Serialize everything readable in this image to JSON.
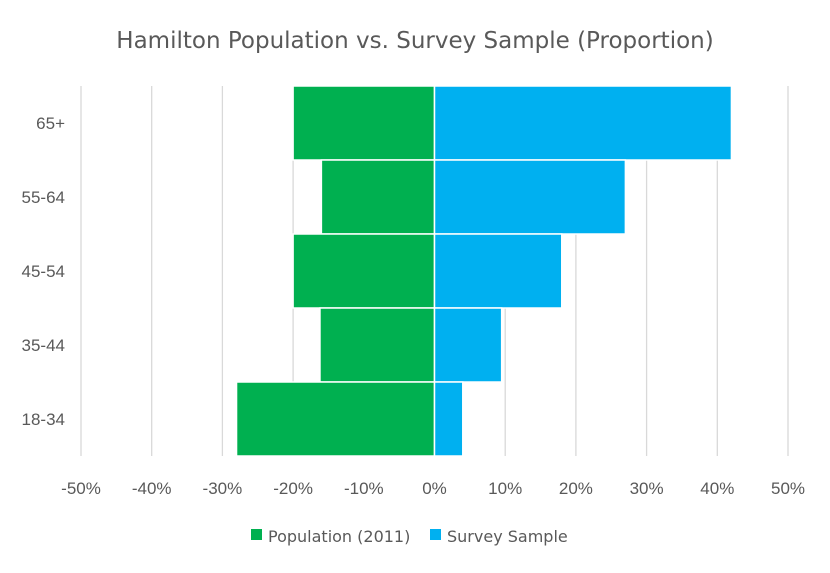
{
  "chart_data": {
    "type": "bar",
    "orientation": "horizontal",
    "stacked": "diverging",
    "title": "Hamilton Population vs. Survey Sample (Proportion)",
    "xlabel": "",
    "ylabel": "",
    "categories": [
      "65+",
      "55-64",
      "45-54",
      "35-44",
      "18-34"
    ],
    "series": [
      {
        "name": "Population (2011)",
        "color": "#00B050",
        "values": [
          -0.2,
          -0.16,
          -0.2,
          -0.162,
          -0.28
        ]
      },
      {
        "name": "Survey Sample",
        "color": "#00B0F0",
        "values": [
          0.42,
          0.27,
          0.18,
          0.095,
          0.04
        ]
      }
    ],
    "xlim": [
      -0.5,
      0.5
    ],
    "x_ticks": [
      -0.5,
      -0.4,
      -0.3,
      -0.2,
      -0.1,
      0,
      0.1,
      0.2,
      0.3,
      0.4,
      0.5
    ],
    "x_tick_labels": [
      "-50%",
      "-40%",
      "-30%",
      "-20%",
      "-10%",
      "0%",
      "10%",
      "20%",
      "30%",
      "40%",
      "50%"
    ],
    "grid": "vertical",
    "legend": "bottom"
  }
}
